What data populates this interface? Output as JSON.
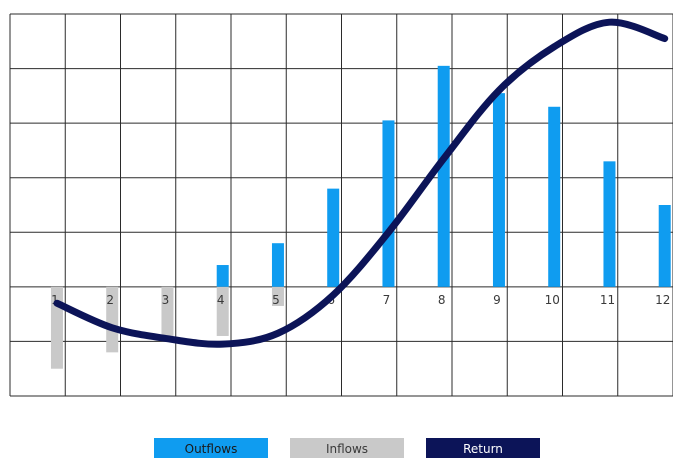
{
  "chart_data": {
    "type": "bar",
    "title": "",
    "xlabel": "",
    "ylabel": "",
    "categories": [
      "1",
      "2",
      "3",
      "4",
      "5",
      "6",
      "7",
      "8",
      "9",
      "10",
      "11",
      "12"
    ],
    "ylim": [
      -2,
      5
    ],
    "grid": true,
    "legend_position": "bottom",
    "series": [
      {
        "name": "Outflows",
        "kind": "bar",
        "color": "#0f9cf0",
        "values": [
          0,
          0,
          0,
          0.4,
          0.8,
          1.8,
          3.05,
          4.05,
          3.55,
          3.3,
          2.3,
          1.5
        ]
      },
      {
        "name": "Inflows",
        "kind": "bar",
        "color": "#c9c9c9",
        "values": [
          -1.5,
          -1.2,
          -0.95,
          -0.9,
          -0.35,
          0,
          0,
          0,
          0,
          0,
          0,
          0
        ]
      },
      {
        "name": "Return",
        "kind": "line",
        "color": "#0c1458",
        "values": [
          -0.3,
          -0.75,
          -0.95,
          -1.05,
          -0.85,
          -0.15,
          1.0,
          2.35,
          3.6,
          4.4,
          4.85,
          4.55
        ]
      }
    ]
  }
}
